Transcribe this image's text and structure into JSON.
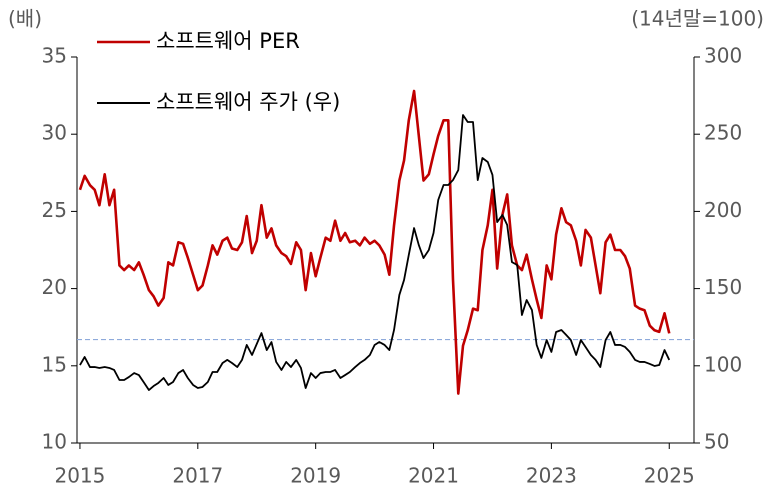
{
  "chart_data": {
    "type": "line",
    "y_label": "(배)",
    "y2_label": "(14년말=100)",
    "x": [
      2015,
      2015.08,
      2015.17,
      2015.25,
      2015.33,
      2015.42,
      2015.5,
      2015.58,
      2015.67,
      2015.75,
      2015.83,
      2015.92,
      2016,
      2016.08,
      2016.17,
      2016.25,
      2016.33,
      2016.42,
      2016.5,
      2016.58,
      2016.67,
      2016.75,
      2016.83,
      2016.92,
      2017,
      2017.08,
      2017.17,
      2017.25,
      2017.33,
      2017.42,
      2017.5,
      2017.58,
      2017.67,
      2017.75,
      2017.83,
      2017.92,
      2018,
      2018.08,
      2018.17,
      2018.25,
      2018.33,
      2018.42,
      2018.5,
      2018.58,
      2018.67,
      2018.75,
      2018.83,
      2018.92,
      2019,
      2019.08,
      2019.17,
      2019.25,
      2019.33,
      2019.42,
      2019.5,
      2019.58,
      2019.67,
      2019.75,
      2019.83,
      2019.92,
      2020,
      2020.08,
      2020.17,
      2020.25,
      2020.33,
      2020.42,
      2020.5,
      2020.58,
      2020.67,
      2020.75,
      2020.83,
      2020.92,
      2021,
      2021.08,
      2021.17,
      2021.25,
      2021.33,
      2021.42,
      2021.5,
      2021.58,
      2021.67,
      2021.75,
      2021.83,
      2021.92,
      2022,
      2022.08,
      2022.17,
      2022.25,
      2022.33,
      2022.42,
      2022.5,
      2022.58,
      2022.67,
      2022.75,
      2022.83,
      2022.92,
      2023,
      2023.08,
      2023.17,
      2023.25,
      2023.33,
      2023.42,
      2023.5,
      2023.58,
      2023.67,
      2023.75,
      2023.83,
      2023.92,
      2024,
      2024.08,
      2024.17,
      2024.25,
      2024.33,
      2024.42,
      2024.5,
      2024.58,
      2024.67,
      2024.75,
      2024.83,
      2024.92,
      2025
    ],
    "series": [
      {
        "name": "소프트웨어 PER",
        "color": "#c00000",
        "axis": "y",
        "values": [
          26.4,
          27.3,
          26.7,
          26.4,
          25.4,
          27.4,
          25.4,
          26.4,
          21.5,
          21.2,
          21.5,
          21.2,
          21.7,
          20.9,
          19.9,
          19.5,
          18.9,
          19.4,
          21.7,
          21.5,
          23.0,
          22.9,
          22.0,
          20.9,
          19.9,
          20.2,
          21.5,
          22.8,
          22.2,
          23.1,
          23.3,
          22.6,
          22.5,
          23.0,
          24.7,
          22.3,
          23.1,
          25.4,
          23.3,
          23.9,
          22.8,
          22.3,
          22.1,
          21.6,
          23.0,
          22.5,
          19.9,
          22.3,
          20.8,
          22.0,
          23.3,
          23.1,
          24.4,
          23.1,
          23.6,
          23.0,
          23.1,
          22.8,
          23.3,
          22.9,
          23.1,
          22.8,
          22.2,
          20.9,
          24.1,
          27.0,
          28.3,
          30.9,
          32.8,
          29.9,
          27.0,
          27.4,
          28.7,
          29.9,
          30.9,
          30.9,
          20.6,
          13.2,
          16.3,
          17.3,
          18.7,
          18.6,
          22.5,
          24.1,
          26.4,
          21.3,
          24.8,
          26.1,
          22.8,
          21.5,
          21.2,
          22.2,
          20.6,
          19.3,
          18.1,
          21.5,
          20.6,
          23.5,
          25.2,
          24.3,
          24.1,
          23.1,
          21.5,
          23.8,
          23.3,
          21.5,
          19.7,
          23.0,
          23.5,
          22.5,
          22.5,
          22.1,
          21.3,
          18.9,
          18.7,
          18.6,
          17.6,
          17.3,
          17.2,
          18.4,
          17.1
        ]
      },
      {
        "name": "소프트웨어 주가 (우)",
        "color": "#000000",
        "axis": "y2",
        "values": [
          100.5,
          105.7,
          99.2,
          99.2,
          98.6,
          99.2,
          98.6,
          97.3,
          90.8,
          90.8,
          92.7,
          95.3,
          94.0,
          89.5,
          84.3,
          86.9,
          88.9,
          92.1,
          87.6,
          89.5,
          95.3,
          97.3,
          92.1,
          87.6,
          85.6,
          86.3,
          89.5,
          96.0,
          96.0,
          101.8,
          103.8,
          101.8,
          99.2,
          103.8,
          113.5,
          107.0,
          114.1,
          121.2,
          110.2,
          115.4,
          102.5,
          97.3,
          102.5,
          99.2,
          103.8,
          98.6,
          85.6,
          95.3,
          92.1,
          95.3,
          96.0,
          96.0,
          97.3,
          92.1,
          94.0,
          96.0,
          99.2,
          101.8,
          103.8,
          107.0,
          113.5,
          115.4,
          113.5,
          110.2,
          123.2,
          145.9,
          155.6,
          171.8,
          189.2,
          178.2,
          169.8,
          175.0,
          186.0,
          207.4,
          217.1,
          217.1,
          220.3,
          226.8,
          262.4,
          257.9,
          257.9,
          220.3,
          234.6,
          232.0,
          223.6,
          193.1,
          197.7,
          191.2,
          167.2,
          165.3,
          132.9,
          142.6,
          136.1,
          113.5,
          105.1,
          116.7,
          109.0,
          121.9,
          123.2,
          120.0,
          116.7,
          107.0,
          116.7,
          112.2,
          107.0,
          103.8,
          99.2,
          116.7,
          121.9,
          113.5,
          113.5,
          112.2,
          109.0,
          103.8,
          102.5,
          102.5,
          101.2,
          99.9,
          100.5,
          110.2,
          103.8
        ]
      }
    ],
    "xlim": [
      2014.95,
      2025.42
    ],
    "xticks": [
      2015,
      2017,
      2019,
      2021,
      2023,
      2025
    ],
    "ylim": [
      10,
      35
    ],
    "yticks": [
      10,
      15,
      20,
      25,
      30,
      35
    ],
    "y2lim": [
      50,
      300
    ],
    "y2ticks": [
      50,
      100,
      150,
      200,
      250,
      300
    ],
    "reference_line": {
      "value": 16.7,
      "axis": "y",
      "color": "#8eaadb",
      "style": "dashed"
    },
    "grid": false,
    "legend": "upper left"
  }
}
